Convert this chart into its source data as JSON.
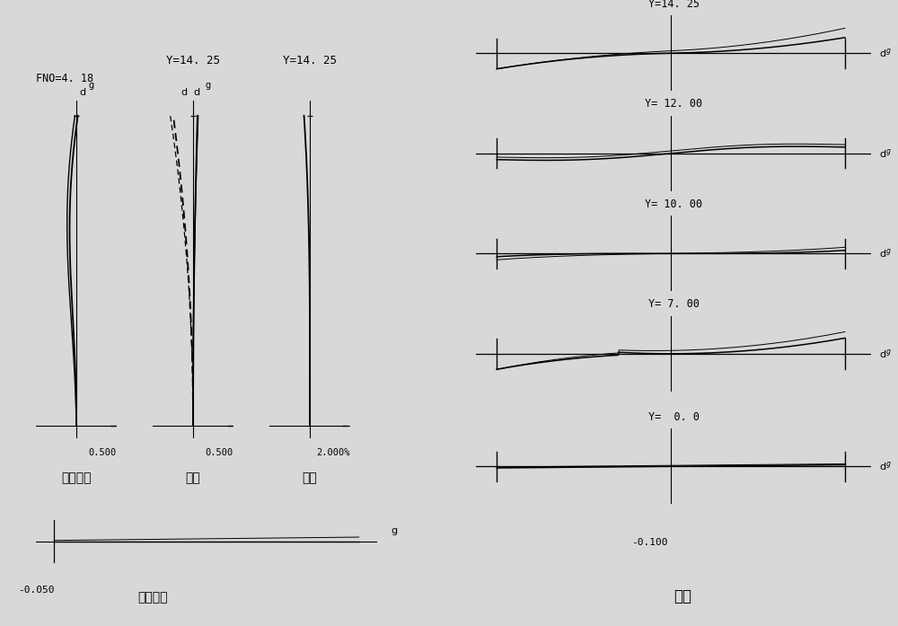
{
  "fig_width": 10.0,
  "fig_height": 6.97,
  "dpi": 100,
  "bg_color": "#d8d8d8",
  "title_fno": "FNO=4. 18",
  "title_sa": "球面像差",
  "title_astig": "像散",
  "title_dist": "畚变",
  "title_coma": "彗差",
  "title_lateral": "倍率色差",
  "y_labels": [
    "Y=14. 25",
    "Y= 12. 00",
    "Y= 10. 00",
    "Y= 7. 00",
    "Y=  0. 0"
  ],
  "sa_xlabel": "0.500",
  "astig_xlabel": "0.500",
  "dist_xlabel": "2.000%",
  "coma_xlabel": "-0.100",
  "lateral_xlabel": "-0.050",
  "astig_title": "Y=14. 25",
  "dist_title": "Y=14. 25"
}
